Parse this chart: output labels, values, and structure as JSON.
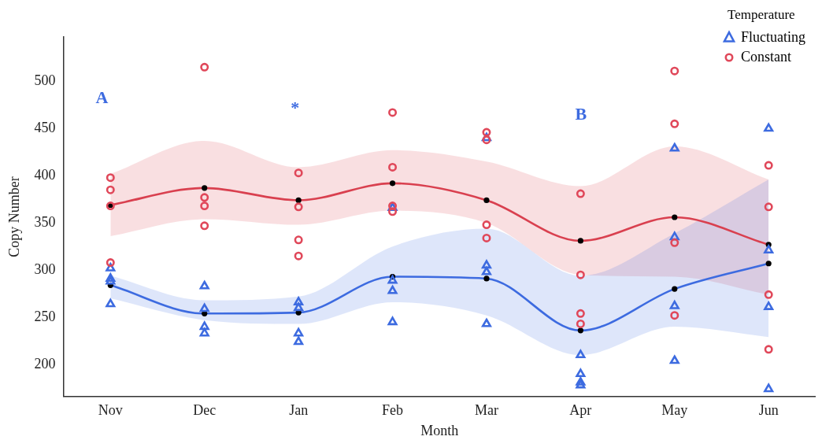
{
  "chart_data": {
    "type": "scatter",
    "xlabel": "Month",
    "ylabel": "Copy Number",
    "legend_title": "Temperature",
    "legend": "top right",
    "grid": false,
    "categories": [
      "Nov",
      "Dec",
      "Jan",
      "Feb",
      "Mar",
      "Apr",
      "May",
      "Jun"
    ],
    "ylim": [
      166,
      547
    ],
    "yticks": [
      200,
      250,
      300,
      350,
      400,
      450,
      500
    ],
    "annotations": [
      "A",
      "*",
      "B"
    ],
    "series": [
      {
        "name": "Fluctuating",
        "marker": "triangle",
        "color": "#3d6be0",
        "x": [
          "Nov",
          "Nov",
          "Nov",
          "Nov",
          "Dec",
          "Dec",
          "Dec",
          "Dec",
          "Jan",
          "Jan",
          "Jan",
          "Jan",
          "Feb",
          "Feb",
          "Feb",
          "Mar",
          "Mar",
          "Mar",
          "Feb",
          "Mar",
          "May",
          "Jun",
          "May",
          "Jun",
          "May",
          "Jun",
          "Apr",
          "Apr",
          "Apr",
          "Apr",
          "May",
          "Jun"
        ],
        "values": [
          291,
          302,
          288,
          264,
          283,
          259,
          240,
          233,
          260,
          266,
          233,
          224,
          289,
          278,
          245,
          305,
          298,
          243,
          366,
          440,
          429,
          450,
          335,
          321,
          262,
          261,
          210,
          181,
          178,
          190,
          204,
          174
        ]
      },
      {
        "name": "Constant",
        "marker": "circle",
        "color": "#e0485a",
        "x": [
          "Nov",
          "Nov",
          "Nov",
          "Dec",
          "Dec",
          "Dec",
          "Dec",
          "Jan",
          "Jan",
          "Nov",
          "Jan",
          "Jan",
          "Feb",
          "Feb",
          "Feb",
          "Feb",
          "Mar",
          "Mar",
          "Mar",
          "Mar",
          "May",
          "May",
          "Apr",
          "May",
          "Jun",
          "Jun",
          "Apr",
          "Apr",
          "Apr",
          "May",
          "Jun",
          "Jun"
        ],
        "values": [
          398,
          385,
          368,
          515,
          377,
          368,
          347,
          403,
          367,
          308,
          315,
          332,
          467,
          409,
          368,
          362,
          446,
          438,
          348,
          334,
          511,
          455,
          381,
          329,
          411,
          367,
          295,
          254,
          243,
          252,
          274,
          216
        ]
      },
      {
        "type": "line",
        "marker": "circle",
        "color": "#3d6be0",
        "values": [
          284,
          254,
          255,
          293,
          291,
          236,
          280,
          307
        ],
        "lower": [
          270,
          247,
          243,
          266,
          252,
          210,
          240,
          229
        ],
        "upper": [
          294,
          268,
          272,
          325,
          344,
          294,
          339,
          396
        ]
      },
      {
        "type": "line",
        "marker": "circle",
        "color": "#d9404f",
        "values": [
          369,
          387,
          374,
          392,
          374,
          331,
          356,
          327
        ],
        "lower": [
          336,
          354,
          348,
          363,
          350,
          295,
          293,
          274
        ],
        "upper": [
          402,
          437,
          409,
          427,
          415,
          389,
          431,
          396
        ]
      }
    ]
  }
}
